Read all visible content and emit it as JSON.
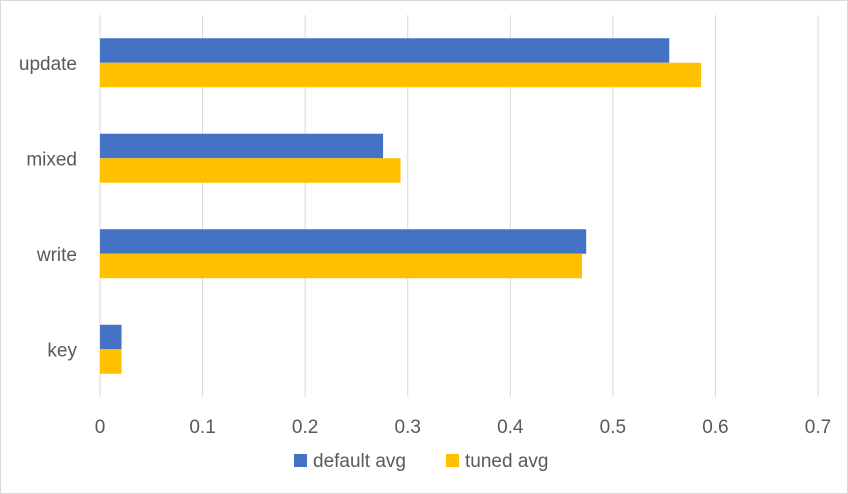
{
  "chart_data": {
    "type": "bar",
    "orientation": "horizontal",
    "categories": [
      "update",
      "mixed",
      "write",
      "key"
    ],
    "series": [
      {
        "name": "default avg",
        "color": "#4472c4",
        "values": [
          0.555,
          0.276,
          0.474,
          0.021
        ]
      },
      {
        "name": "tuned avg",
        "color": "#ffc000",
        "values": [
          0.586,
          0.293,
          0.47,
          0.021
        ]
      }
    ],
    "xlim": [
      0,
      0.7
    ],
    "xticks": [
      "0",
      "0.1",
      "0.2",
      "0.3",
      "0.4",
      "0.5",
      "0.6",
      "0.7"
    ],
    "grid": true,
    "legend": "bottom"
  }
}
